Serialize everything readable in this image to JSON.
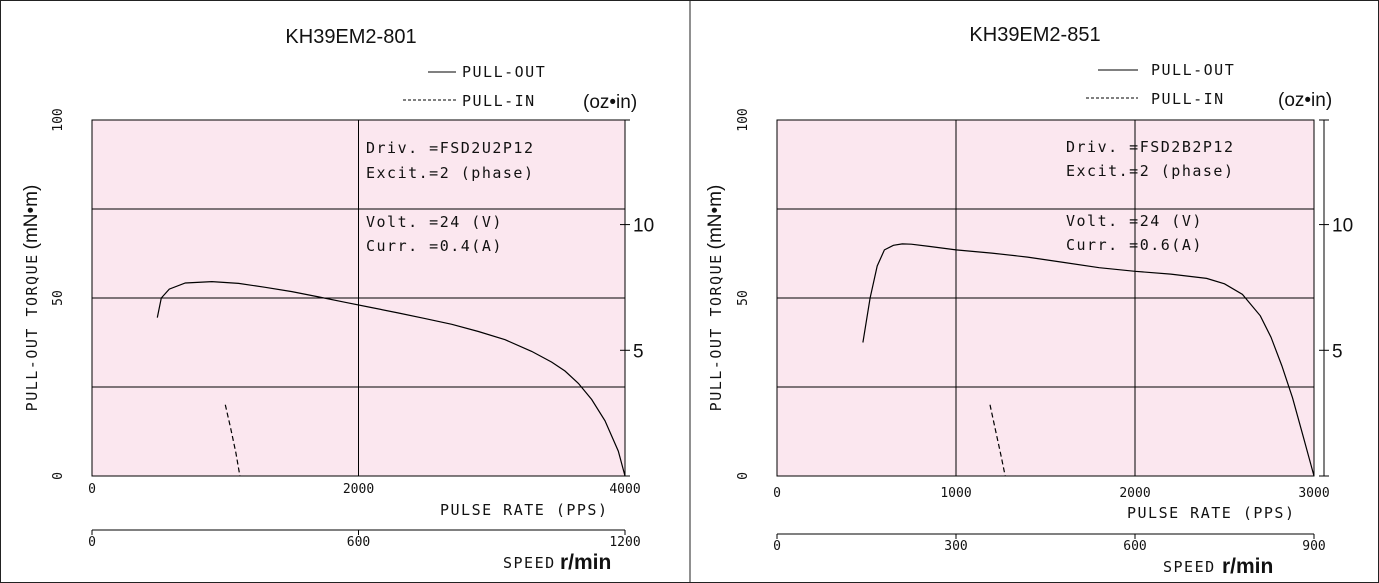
{
  "chart_data": [
    {
      "type": "line",
      "title": "KH39EM2-801",
      "legend": {
        "placement": "top-right",
        "entries": [
          "PULL-OUT",
          "PULL-IN"
        ]
      },
      "ylabel": "PULL-OUT  TORQUE",
      "ylabel_unit": "(mN•m)",
      "y2label": "(oz•in)",
      "xlabel": "PULSE RATE  (PPS)",
      "x2label": "SPEED",
      "x2label_unit": "r/min",
      "xlim": [
        0,
        4000
      ],
      "ylim": [
        0,
        100
      ],
      "x2lim": [
        0,
        1200
      ],
      "y2lim": [
        0,
        14.16
      ],
      "x_ticks": [
        0,
        2000,
        4000
      ],
      "x_tick_labels": [
        "0",
        "2000",
        "4000"
      ],
      "y_ticks": [
        0,
        50,
        100
      ],
      "y_tick_labels": [
        "0",
        "50",
        "100"
      ],
      "x_grid": [
        2000
      ],
      "y_grid": [
        25,
        50,
        75
      ],
      "x2_ticks": [
        0,
        600,
        1200
      ],
      "x2_tick_labels": [
        "0",
        "600",
        "1200"
      ],
      "y2_ticks": [
        5,
        10
      ],
      "y2_tick_labels": [
        "5",
        "10"
      ],
      "annotations": [
        "Driv. =FSD2U2P12",
        "Excit.=2  (phase)",
        "Volt. =24 (V)",
        "Curr. =0.4(A)"
      ],
      "series": [
        {
          "name": "PULL-OUT",
          "style": "solid",
          "x": [
            490,
            520,
            580,
            700,
            900,
            1100,
            1300,
            1500,
            1700,
            1900,
            2100,
            2300,
            2500,
            2700,
            2900,
            3100,
            3300,
            3450,
            3550,
            3650,
            3750,
            3850,
            3950,
            4000
          ],
          "y": [
            44.5,
            50,
            52.5,
            54.2,
            54.6,
            54.1,
            53.0,
            51.8,
            50.3,
            48.8,
            47.3,
            45.8,
            44.2,
            42.6,
            40.6,
            38.3,
            35.0,
            32.0,
            29.5,
            26.0,
            21.5,
            15.5,
            7.0,
            0
          ]
        },
        {
          "name": "PULL-IN",
          "style": "dashed",
          "x": [
            1000,
            1040,
            1080,
            1110
          ],
          "y": [
            20,
            13.5,
            6.5,
            0
          ]
        }
      ]
    },
    {
      "type": "line",
      "title": "KH39EM2-851",
      "legend": {
        "placement": "top-right",
        "entries": [
          "PULL-OUT",
          "PULL-IN"
        ]
      },
      "ylabel": "PULL-OUT  TORQUE",
      "ylabel_unit": "(mN•m)",
      "y2label": "(oz•in)",
      "xlabel": "PULSE RATE  (PPS)",
      "x2label": "SPEED",
      "x2label_unit": "r/min",
      "xlim": [
        0,
        3000
      ],
      "ylim": [
        0,
        100
      ],
      "x2lim": [
        0,
        900
      ],
      "y2lim": [
        0,
        14.16
      ],
      "x_ticks": [
        0,
        1000,
        2000,
        3000
      ],
      "x_tick_labels": [
        "0",
        "1000",
        "2000",
        "3000"
      ],
      "y_ticks": [
        0,
        50,
        100
      ],
      "y_tick_labels": [
        "0",
        "50",
        "100"
      ],
      "x_grid": [
        1000,
        2000
      ],
      "y_grid": [
        25,
        50,
        75
      ],
      "x2_ticks": [
        0,
        300,
        600,
        900
      ],
      "x2_tick_labels": [
        "0",
        "300",
        "600",
        "900"
      ],
      "y2_ticks": [
        5,
        10
      ],
      "y2_tick_labels": [
        "5",
        "10"
      ],
      "annotations": [
        "Driv. =FSD2B2P12",
        "Excit.=2  (phase)",
        "Volt. =24 (V)",
        "Curr. =0.6(A)"
      ],
      "series": [
        {
          "name": "PULL-OUT",
          "style": "solid",
          "x": [
            480,
            520,
            560,
            600,
            650,
            700,
            750,
            850,
            1000,
            1200,
            1400,
            1600,
            1800,
            2000,
            2200,
            2400,
            2500,
            2600,
            2700,
            2760,
            2820,
            2880,
            2940,
            3000
          ],
          "y": [
            37.5,
            50.0,
            59.0,
            63.5,
            64.8,
            65.2,
            65.1,
            64.5,
            63.5,
            62.6,
            61.5,
            60.0,
            58.5,
            57.5,
            56.7,
            55.5,
            54.0,
            51.0,
            45.0,
            39.0,
            31.0,
            22.0,
            11.0,
            0
          ]
        },
        {
          "name": "PULL-IN",
          "style": "dashed",
          "x": [
            1190,
            1220,
            1250,
            1275
          ],
          "y": [
            20,
            13,
            6,
            0
          ]
        }
      ]
    }
  ]
}
